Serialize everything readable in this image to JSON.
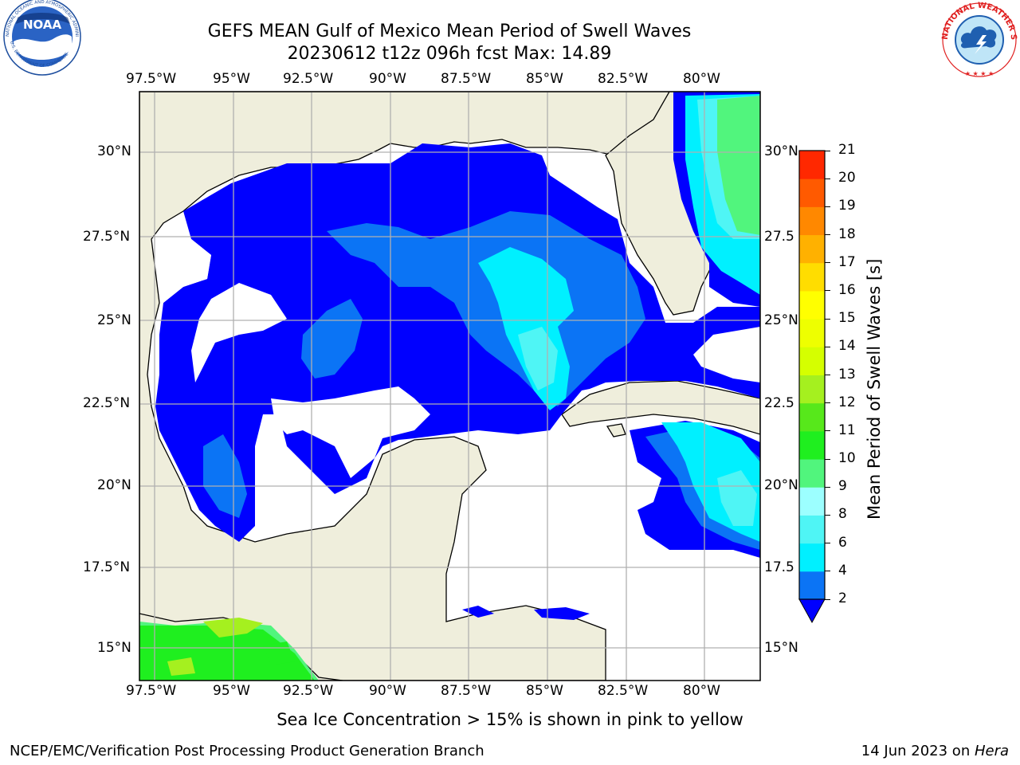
{
  "header": {
    "title_line1": "GEFS MEAN Gulf of Mexico Mean Period of Swell Waves",
    "title_line2": "20230612 t12z 096h fcst   Max: 14.89"
  },
  "logos": {
    "left": {
      "name": "NOAA",
      "ring_text": "NATIONAL OCEANIC AND ATMOSPHERIC ADMINISTRATION · U.S. DEPARTMENT OF COMMERCE"
    },
    "right": {
      "name": "NATIONAL WEATHER SERVICE"
    }
  },
  "map": {
    "lon_labels": [
      "97.5°W",
      "95°W",
      "92.5°W",
      "90°W",
      "87.5°W",
      "85°W",
      "82.5°W",
      "80°W"
    ],
    "lat_labels_left": [
      "30°N",
      "27.5°N",
      "25°N",
      "22.5°N",
      "20°N",
      "17.5°N",
      "15°N"
    ],
    "lat_labels_right": [
      "30°N",
      "27.5",
      "25°N",
      "22.5",
      "20°N",
      "17.5",
      "15°N"
    ],
    "colors": {
      "land": "#efeedc",
      "frame": "#000000",
      "grid": "#b0b0b0"
    }
  },
  "colorbar": {
    "label": "Mean Period of Swell Waves [s]",
    "ticks": [
      "2",
      "4",
      "6",
      "8",
      "9",
      "10",
      "11",
      "12",
      "13",
      "14",
      "15",
      "16",
      "17",
      "18",
      "19",
      "20",
      "21"
    ],
    "colors": [
      "#0000ff",
      "#0b74f5",
      "#00f0ff",
      "#4ff5f5",
      "#9cffff",
      "#51f57d",
      "#1fef1f",
      "#57e81b",
      "#a5f01f",
      "#d5ff00",
      "#eeff00",
      "#ffff00",
      "#ffdd00",
      "#ffb100",
      "#ff8800",
      "#ff5a00",
      "#ff2800",
      "#ff0000"
    ],
    "extend_color": "#0000ff"
  },
  "footer": {
    "sea_ice_note": "Sea Ice Concentration > 15% is shown in pink to yellow",
    "credit": "NCEP/EMC/Verification Post Processing Product Generation Branch",
    "date_prefix": "14 Jun 2023 on ",
    "machine": "Hera"
  }
}
